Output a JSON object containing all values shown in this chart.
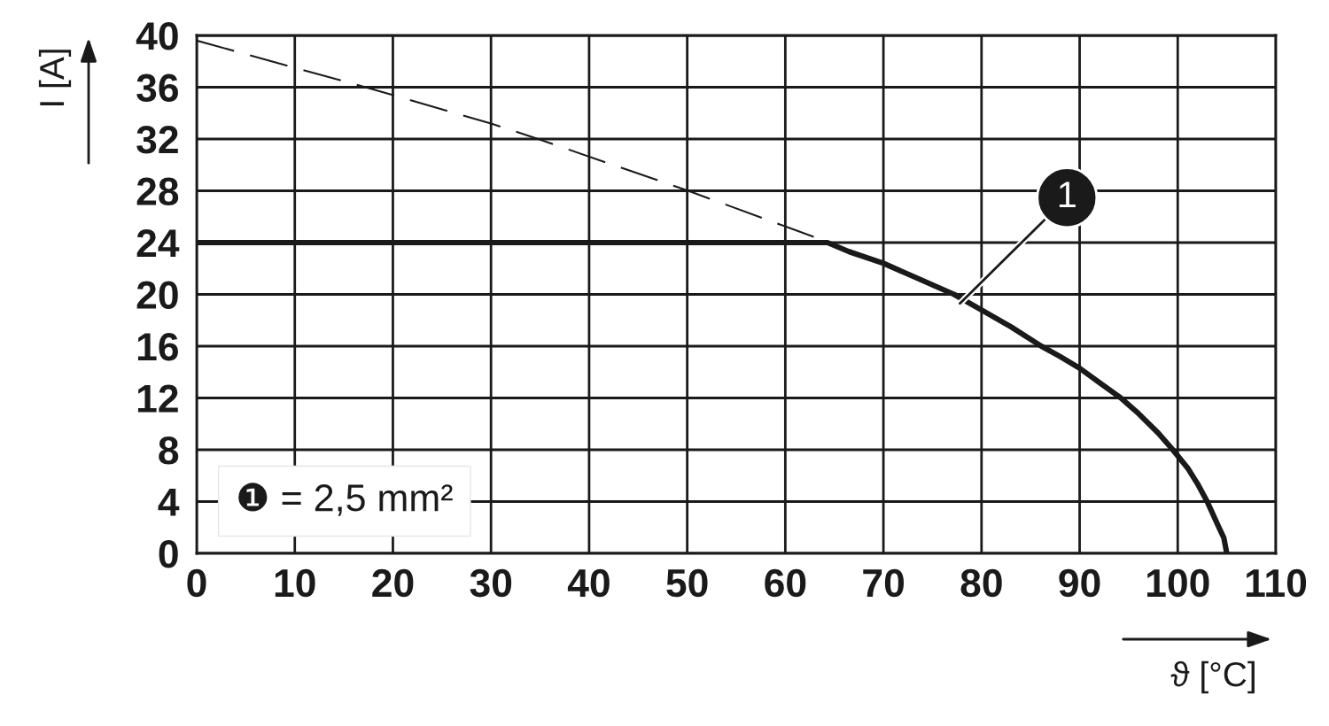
{
  "chart_data": {
    "type": "line",
    "xlabel": "ϑ [°C]",
    "ylabel": "I [A]",
    "xlim": [
      0,
      110
    ],
    "xticks": [
      0,
      10,
      20,
      30,
      40,
      50,
      60,
      70,
      80,
      90,
      100,
      110
    ],
    "ylim": [
      0,
      40
    ],
    "yticks": [
      0,
      4,
      8,
      12,
      16,
      20,
      24,
      28,
      32,
      36,
      40
    ],
    "grid": true,
    "series": [
      {
        "line_style": "dashed",
        "color": "#1a1a1a",
        "x": [
          0,
          17.2,
          30,
          34.8,
          50.1,
          64.5
        ],
        "values": [
          39.6,
          36,
          33.2,
          32,
          28,
          24
        ]
      },
      {
        "line_style": "solid",
        "color": "#1a1a1a",
        "x": [
          0,
          64.3,
          66.5,
          70,
          73,
          77.2,
          80,
          83,
          86.1,
          88,
          90,
          92,
          94.2,
          96,
          98,
          99.5,
          101,
          102,
          103,
          104.2,
          104.7,
          105
        ],
        "values": [
          24,
          24,
          23.3,
          22.4,
          21.4,
          20,
          18.8,
          17.5,
          16,
          15.2,
          14.3,
          13.2,
          12,
          10.8,
          9.3,
          8,
          6.6,
          5.4,
          4,
          2,
          1.2,
          0
        ]
      }
    ],
    "annotations": [
      {
        "text": "1",
        "x": 77.8,
        "y": 19.3
      },
      "❶ = 2,5 mm²"
    ]
  }
}
